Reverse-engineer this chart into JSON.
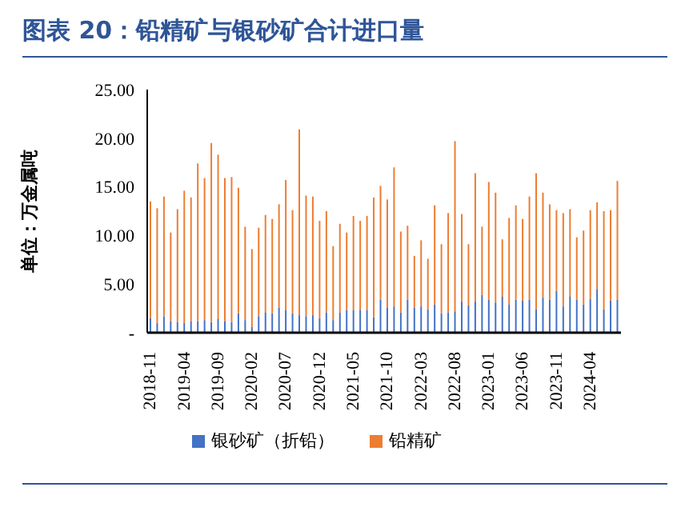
{
  "chart_data": {
    "type": "bar",
    "title": "图表 20：铅精矿与银砂矿合计进口量",
    "ylabel": "单位：万金属吨",
    "stacked": true,
    "categories": [
      "2018-11",
      null,
      null,
      null,
      null,
      "2019-04",
      null,
      null,
      null,
      null,
      "2019-09",
      null,
      null,
      null,
      null,
      "2020-02",
      null,
      null,
      null,
      null,
      "2020-07",
      null,
      null,
      null,
      null,
      "2020-12",
      null,
      null,
      null,
      null,
      "2021-05",
      null,
      null,
      null,
      null,
      "2021-10",
      null,
      null,
      null,
      null,
      "2022-03",
      null,
      null,
      null,
      null,
      "2022-08",
      null,
      null,
      null,
      null,
      "2023-01",
      null,
      null,
      null,
      null,
      "2023-06",
      null,
      null,
      null,
      null,
      "2023-11",
      null,
      null,
      null,
      null,
      "2024-04",
      null,
      null,
      null,
      null
    ],
    "series": [
      {
        "name": "银砂矿（折铅）",
        "color": "#4472c4",
        "values": [
          1.5,
          1.0,
          1.7,
          1.2,
          1.1,
          1.0,
          1.2,
          1.2,
          1.3,
          1.1,
          1.4,
          1.2,
          1.1,
          2.0,
          1.3,
          0.6,
          1.7,
          2.1,
          2.0,
          2.6,
          2.3,
          2.0,
          1.8,
          1.7,
          1.8,
          1.5,
          2.1,
          1.3,
          2.1,
          2.3,
          2.3,
          2.3,
          2.3,
          1.6,
          3.4,
          2.6,
          2.7,
          2.1,
          3.4,
          2.6,
          2.7,
          2.4,
          2.9,
          2.0,
          2.1,
          2.2,
          3.2,
          2.8,
          3.2,
          3.9,
          3.4,
          3.1,
          3.7,
          2.9,
          3.4,
          3.3,
          3.4,
          2.4,
          3.6,
          3.4,
          4.3,
          2.7,
          3.7,
          3.4,
          2.9,
          3.5,
          4.5,
          2.4,
          3.3,
          3.4
        ]
      },
      {
        "name": "铅精矿",
        "color": "#ed7d31",
        "values": [
          12.0,
          11.8,
          12.3,
          9.1,
          11.6,
          13.6,
          12.7,
          16.2,
          14.6,
          18.4,
          16.9,
          14.7,
          14.9,
          12.9,
          9.6,
          8.0,
          9.1,
          10.0,
          9.7,
          10.6,
          13.4,
          10.6,
          19.1,
          12.4,
          12.2,
          10.0,
          10.4,
          7.6,
          9.1,
          8.0,
          9.7,
          9.2,
          9.7,
          12.3,
          11.7,
          11.1,
          14.3,
          8.3,
          7.6,
          5.3,
          6.8,
          5.2,
          10.2,
          7.1,
          10.2,
          17.5,
          9.0,
          6.3,
          13.2,
          7.0,
          12.1,
          11.3,
          5.9,
          8.9,
          9.7,
          8.4,
          10.6,
          14.0,
          10.8,
          9.8,
          8.3,
          9.6,
          9.0,
          6.4,
          7.6,
          9.1,
          8.9,
          10.1,
          9.3,
          12.2
        ]
      }
    ],
    "ylim": [
      0,
      25
    ],
    "yticks": [
      {
        "value": 0,
        "label": "-"
      },
      {
        "value": 5,
        "label": "5.00"
      },
      {
        "value": 10,
        "label": "10.00"
      },
      {
        "value": 15,
        "label": "15.00"
      },
      {
        "value": 20,
        "label": "20.00"
      },
      {
        "value": 25,
        "label": "25.00"
      }
    ],
    "legend": "bottom"
  }
}
